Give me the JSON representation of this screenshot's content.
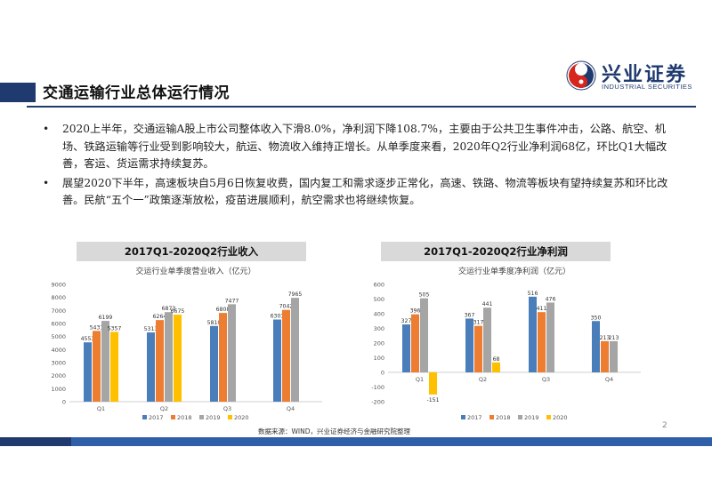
{
  "page": {
    "title": "交通运输行业总体运行情况",
    "logo_cn": "兴业证券",
    "logo_en": "INDUSTRIAL SECURITIES",
    "page_number": "2",
    "source": "数据来源：WIND，兴业证券经济与金融研究院整理",
    "bullets": [
      "2020上半年，交通运输A股上市公司整体收入下滑8.0%，净利润下降108.7%，主要由于公共卫生事件冲击，公路、航空、机场、铁路运输等行业受到影响较大，航运、物流收入维持正增长。从单季度来看，2020年Q2行业净利润68亿，环比Q1大幅改善，客运、货运需求持续复苏。",
      "展望2020下半年，高速板块自5月6日恢复收费，国内复工和需求逐步正常化，高速、铁路、物流等板块有望持续复苏和环比改善。民航“五个一”政策逐渐放松，疫苗进展顺利，航空需求也将继续恢复。"
    ],
    "colors": {
      "s2017": "#4a7ebb",
      "s2018": "#ed7d31",
      "s2019": "#a5a5a5",
      "s2020": "#ffc000",
      "brand": "#1f3a6e"
    }
  },
  "chart_data": [
    {
      "type": "bar",
      "header": "2017Q1-2020Q2行业收入",
      "title": "交运行业单季度营业收入（亿元）",
      "categories": [
        "Q1",
        "Q2",
        "Q3",
        "Q4"
      ],
      "yticks": [
        "0",
        "1000",
        "2000",
        "3000",
        "4000",
        "5000",
        "6000",
        "7000",
        "8000",
        "9000"
      ],
      "ylim": [
        0,
        9000
      ],
      "series": [
        {
          "name": "2017",
          "values": [
            4553,
            5313,
            5810,
            6303
          ]
        },
        {
          "name": "2018",
          "values": [
            5431,
            6264,
            6808,
            7042
          ]
        },
        {
          "name": "2019",
          "values": [
            6199,
            6873,
            7477,
            7965
          ]
        },
        {
          "name": "2020",
          "values": [
            5357,
            6675,
            null,
            null
          ]
        }
      ]
    },
    {
      "type": "bar",
      "header": "2017Q1-2020Q2行业净利润",
      "title": "交运行业单季度净利润（亿元）",
      "categories": [
        "Q1",
        "Q2",
        "Q3",
        "Q4"
      ],
      "yticks": [
        "-200",
        "-100",
        "0",
        "100",
        "200",
        "300",
        "400",
        "500",
        "600"
      ],
      "ylim": [
        -200,
        600
      ],
      "series": [
        {
          "name": "2017",
          "values": [
            327,
            367,
            516,
            350
          ]
        },
        {
          "name": "2018",
          "values": [
            396,
            317,
            411,
            213
          ]
        },
        {
          "name": "2019",
          "values": [
            505,
            441,
            476,
            213
          ]
        },
        {
          "name": "2020",
          "values": [
            -151,
            68,
            null,
            null
          ]
        }
      ]
    }
  ]
}
